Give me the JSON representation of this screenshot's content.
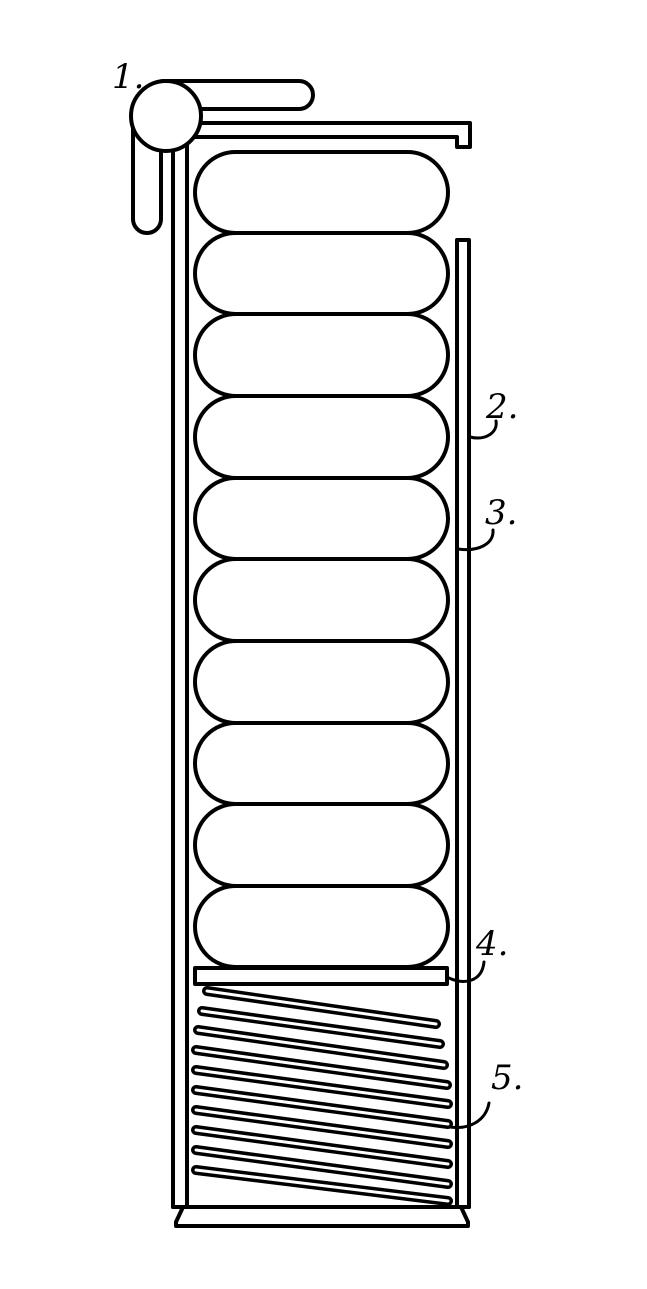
{
  "diagram": {
    "callouts": [
      {
        "id": "1",
        "label": "1."
      },
      {
        "id": "2",
        "label": "2."
      },
      {
        "id": "3",
        "label": "3."
      },
      {
        "id": "4",
        "label": "4."
      },
      {
        "id": "5",
        "label": "5."
      }
    ],
    "capsule_count": 10,
    "spring_coil_count": 10,
    "stroke_color": "#000000",
    "background_color": "#ffffff"
  }
}
